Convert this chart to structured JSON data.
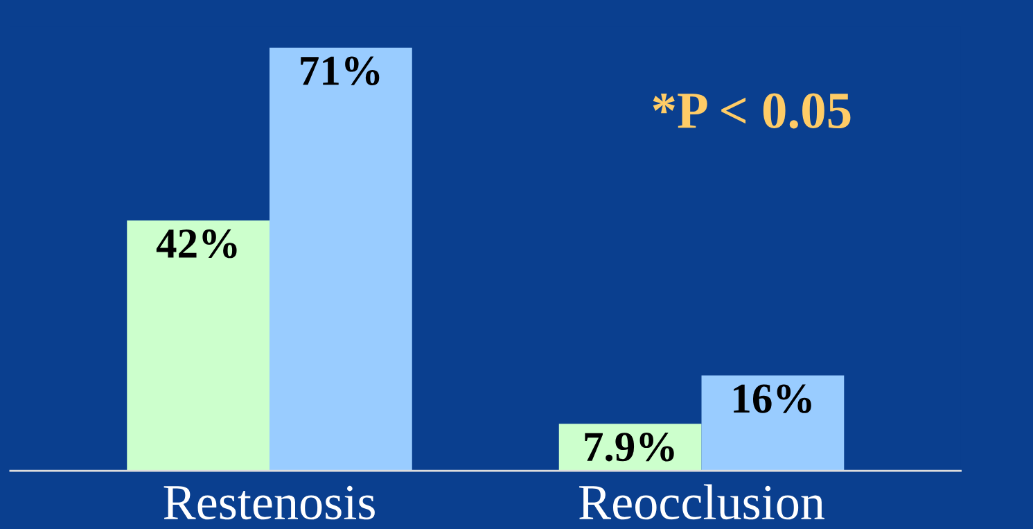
{
  "chart_data": {
    "type": "bar",
    "categories": [
      "Restenosis",
      "Reocclusion"
    ],
    "series": [
      {
        "color": "#ccffcc",
        "values": [
          42,
          7.9
        ],
        "value_labels": [
          "42%",
          "7.9%"
        ]
      },
      {
        "color": "#99ccff",
        "values": [
          71,
          16
        ],
        "value_labels": [
          "71%",
          "16%"
        ]
      }
    ],
    "annotations": [
      "*P < 0.05"
    ],
    "grid": false,
    "legend": false
  }
}
